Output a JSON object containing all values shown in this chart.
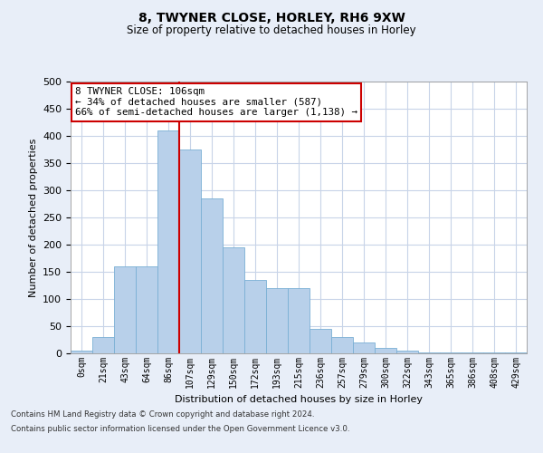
{
  "title1": "8, TWYNER CLOSE, HORLEY, RH6 9XW",
  "title2": "Size of property relative to detached houses in Horley",
  "xlabel": "Distribution of detached houses by size in Horley",
  "ylabel": "Number of detached properties",
  "bar_labels": [
    "0sqm",
    "21sqm",
    "43sqm",
    "64sqm",
    "86sqm",
    "107sqm",
    "129sqm",
    "150sqm",
    "172sqm",
    "193sqm",
    "215sqm",
    "236sqm",
    "257sqm",
    "279sqm",
    "300sqm",
    "322sqm",
    "343sqm",
    "365sqm",
    "386sqm",
    "408sqm",
    "429sqm"
  ],
  "bar_heights": [
    5,
    30,
    160,
    160,
    410,
    375,
    285,
    195,
    135,
    120,
    120,
    45,
    30,
    20,
    10,
    5,
    2,
    2,
    1,
    1,
    1
  ],
  "bar_color": "#b8d0ea",
  "bar_edgecolor": "#7aafd4",
  "vline_color": "#cc0000",
  "annotation_text": "8 TWYNER CLOSE: 106sqm\n← 34% of detached houses are smaller (587)\n66% of semi-detached houses are larger (1,138) →",
  "annotation_box_edgecolor": "#cc0000",
  "annotation_box_facecolor": "#ffffff",
  "ylim": [
    0,
    500
  ],
  "yticks": [
    0,
    50,
    100,
    150,
    200,
    250,
    300,
    350,
    400,
    450,
    500
  ],
  "footer1": "Contains HM Land Registry data © Crown copyright and database right 2024.",
  "footer2": "Contains public sector information licensed under the Open Government Licence v3.0.",
  "bg_color": "#e8eef8",
  "plot_bg_color": "#ffffff",
  "grid_color": "#c8d4e8"
}
